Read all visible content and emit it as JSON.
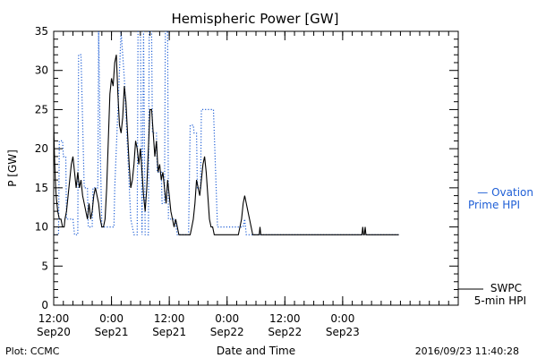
{
  "chart_data": {
    "type": "line",
    "title": "Hemispheric Power [GW]",
    "ylabel": "P [GW]",
    "xlabel": "Date and Time",
    "ylim": [
      0,
      35
    ],
    "xlim": [
      "2016-09-20T12:00",
      "2016-09-24T00:00"
    ],
    "yticks": [
      "0",
      "5",
      "10",
      "15",
      "20",
      "25",
      "30",
      "35"
    ],
    "xticks": [
      {
        "at": "2016-09-20T12:00",
        "line1": "12:00",
        "line2": "Sep20"
      },
      {
        "at": "2016-09-21T00:00",
        "line1": "0:00",
        "line2": "Sep21"
      },
      {
        "at": "2016-09-21T12:00",
        "line1": "12:00",
        "line2": "Sep21"
      },
      {
        "at": "2016-09-22T00:00",
        "line1": "0:00",
        "line2": "Sep22"
      },
      {
        "at": "2016-09-22T12:00",
        "line1": "12:00",
        "line2": "Sep22"
      },
      {
        "at": "2016-09-23T00:00",
        "line1": "0:00",
        "line2": "Sep23"
      }
    ],
    "grid": false,
    "legend": [
      {
        "text1": "— Ovation",
        "text2": "Prime HPI",
        "color": "#1f5fd6",
        "style": "dotted"
      },
      {
        "text1": "SWPC",
        "text2": "5-min HPI",
        "color": "#000000",
        "style": "solid"
      }
    ],
    "series": [
      {
        "name": "Ovation Prime HPI",
        "color": "#1f5fd6",
        "style": "dotted",
        "points": [
          [
            "2016-09-20T12:00",
            9
          ],
          [
            "2016-09-20T12:40",
            9
          ],
          [
            "2016-09-20T13:00",
            9
          ],
          [
            "2016-09-20T13:10",
            21
          ],
          [
            "2016-09-20T13:50",
            21
          ],
          [
            "2016-09-20T14:00",
            19
          ],
          [
            "2016-09-20T14:30",
            19
          ],
          [
            "2016-09-20T14:40",
            11
          ],
          [
            "2016-09-20T16:00",
            11
          ],
          [
            "2016-09-20T16:20",
            9
          ],
          [
            "2016-09-20T17:00",
            9
          ],
          [
            "2016-09-20T17:10",
            32
          ],
          [
            "2016-09-20T17:40",
            32
          ],
          [
            "2016-09-20T18:20",
            15
          ],
          [
            "2016-09-20T19:00",
            15
          ],
          [
            "2016-09-20T19:10",
            10
          ],
          [
            "2016-09-20T20:00",
            10
          ],
          [
            "2016-09-20T20:10",
            15
          ],
          [
            "2016-09-20T21:10",
            15
          ],
          [
            "2016-09-20T21:20",
            35
          ],
          [
            "2016-09-20T21:40",
            20
          ],
          [
            "2016-09-20T22:00",
            10
          ],
          [
            "2016-09-21T00:30",
            10
          ],
          [
            "2016-09-21T00:40",
            15
          ],
          [
            "2016-09-21T02:00",
            35
          ],
          [
            "2016-09-21T02:40",
            29
          ],
          [
            "2016-09-21T04:00",
            11
          ],
          [
            "2016-09-21T04:40",
            9
          ],
          [
            "2016-09-21T05:20",
            9
          ],
          [
            "2016-09-21T05:30",
            35
          ],
          [
            "2016-09-21T06:00",
            35
          ],
          [
            "2016-09-21T06:20",
            9
          ],
          [
            "2016-09-21T06:40",
            35
          ],
          [
            "2016-09-21T07:00",
            9
          ],
          [
            "2016-09-21T07:40",
            9
          ],
          [
            "2016-09-21T07:50",
            35
          ],
          [
            "2016-09-21T08:20",
            35
          ],
          [
            "2016-09-21T08:30",
            22
          ],
          [
            "2016-09-21T09:20",
            22
          ],
          [
            "2016-09-21T09:30",
            17
          ],
          [
            "2016-09-21T10:20",
            17
          ],
          [
            "2016-09-21T10:30",
            13
          ],
          [
            "2016-09-21T11:00",
            13
          ],
          [
            "2016-09-21T11:10",
            35
          ],
          [
            "2016-09-21T11:40",
            35
          ],
          [
            "2016-09-21T11:50",
            11
          ],
          [
            "2016-09-21T13:10",
            11
          ],
          [
            "2016-09-21T13:40",
            9
          ],
          [
            "2016-09-21T16:00",
            9
          ],
          [
            "2016-09-21T16:20",
            23
          ],
          [
            "2016-09-21T17:00",
            23
          ],
          [
            "2016-09-21T17:10",
            22
          ],
          [
            "2016-09-21T17:40",
            22
          ],
          [
            "2016-09-21T17:50",
            15
          ],
          [
            "2016-09-21T18:30",
            15
          ],
          [
            "2016-09-21T18:40",
            25
          ],
          [
            "2016-09-21T21:10",
            25
          ],
          [
            "2016-09-21T22:00",
            10
          ],
          [
            "2016-09-22T03:20",
            10
          ],
          [
            "2016-09-22T03:40",
            11
          ],
          [
            "2016-09-22T04:00",
            9
          ],
          [
            "2016-09-23T11:40",
            9
          ]
        ]
      },
      {
        "name": "SWPC 5-min HPI",
        "color": "#000000",
        "style": "solid",
        "points": [
          [
            "2016-09-20T12:00",
            23
          ],
          [
            "2016-09-20T12:10",
            19
          ],
          [
            "2016-09-20T12:20",
            16
          ],
          [
            "2016-09-20T12:30",
            14
          ],
          [
            "2016-09-20T12:40",
            13
          ],
          [
            "2016-09-20T12:50",
            12
          ],
          [
            "2016-09-20T13:10",
            11
          ],
          [
            "2016-09-20T13:30",
            11
          ],
          [
            "2016-09-20T13:50",
            10
          ],
          [
            "2016-09-20T14:10",
            10
          ],
          [
            "2016-09-20T14:20",
            11
          ],
          [
            "2016-09-20T14:40",
            12
          ],
          [
            "2016-09-20T15:00",
            14
          ],
          [
            "2016-09-20T15:20",
            16
          ],
          [
            "2016-09-20T15:40",
            18
          ],
          [
            "2016-09-20T16:00",
            19
          ],
          [
            "2016-09-20T16:20",
            17
          ],
          [
            "2016-09-20T16:40",
            15
          ],
          [
            "2016-09-20T17:00",
            17
          ],
          [
            "2016-09-20T17:20",
            15
          ],
          [
            "2016-09-20T17:40",
            16
          ],
          [
            "2016-09-20T18:00",
            14
          ],
          [
            "2016-09-20T18:20",
            13
          ],
          [
            "2016-09-20T18:40",
            12
          ],
          [
            "2016-09-20T19:00",
            11
          ],
          [
            "2016-09-20T19:20",
            13
          ],
          [
            "2016-09-20T19:40",
            11
          ],
          [
            "2016-09-20T20:00",
            12
          ],
          [
            "2016-09-20T20:20",
            14
          ],
          [
            "2016-09-20T20:40",
            15
          ],
          [
            "2016-09-20T21:00",
            14
          ],
          [
            "2016-09-20T21:20",
            13
          ],
          [
            "2016-09-20T21:40",
            11
          ],
          [
            "2016-09-20T22:00",
            10
          ],
          [
            "2016-09-20T22:20",
            10
          ],
          [
            "2016-09-20T22:40",
            11
          ],
          [
            "2016-09-20T23:00",
            15
          ],
          [
            "2016-09-20T23:20",
            21
          ],
          [
            "2016-09-20T23:40",
            27
          ],
          [
            "2016-09-21T00:00",
            29
          ],
          [
            "2016-09-21T00:20",
            28
          ],
          [
            "2016-09-21T00:40",
            31
          ],
          [
            "2016-09-21T01:00",
            32
          ],
          [
            "2016-09-21T01:20",
            27
          ],
          [
            "2016-09-21T01:40",
            23
          ],
          [
            "2016-09-21T02:00",
            22
          ],
          [
            "2016-09-21T02:20",
            24
          ],
          [
            "2016-09-21T02:40",
            28
          ],
          [
            "2016-09-21T03:00",
            26
          ],
          [
            "2016-09-21T03:20",
            22
          ],
          [
            "2016-09-21T03:40",
            18
          ],
          [
            "2016-09-21T04:00",
            15
          ],
          [
            "2016-09-21T04:20",
            16
          ],
          [
            "2016-09-21T04:40",
            18
          ],
          [
            "2016-09-21T05:00",
            21
          ],
          [
            "2016-09-21T05:20",
            20
          ],
          [
            "2016-09-21T05:40",
            18
          ],
          [
            "2016-09-21T06:00",
            20
          ],
          [
            "2016-09-21T06:20",
            17
          ],
          [
            "2016-09-21T06:40",
            14
          ],
          [
            "2016-09-21T07:00",
            12
          ],
          [
            "2016-09-21T07:20",
            15
          ],
          [
            "2016-09-21T07:40",
            20
          ],
          [
            "2016-09-21T08:00",
            25
          ],
          [
            "2016-09-21T08:20",
            25
          ],
          [
            "2016-09-21T08:40",
            22
          ],
          [
            "2016-09-21T09:00",
            19
          ],
          [
            "2016-09-21T09:20",
            21
          ],
          [
            "2016-09-21T09:40",
            17
          ],
          [
            "2016-09-21T10:00",
            18
          ],
          [
            "2016-09-21T10:20",
            16
          ],
          [
            "2016-09-21T10:40",
            17
          ],
          [
            "2016-09-21T11:00",
            15
          ],
          [
            "2016-09-21T11:20",
            13
          ],
          [
            "2016-09-21T11:40",
            16
          ],
          [
            "2016-09-21T12:00",
            14
          ],
          [
            "2016-09-21T12:20",
            12
          ],
          [
            "2016-09-21T12:40",
            11
          ],
          [
            "2016-09-21T13:00",
            10
          ],
          [
            "2016-09-21T13:20",
            11
          ],
          [
            "2016-09-21T13:40",
            10
          ],
          [
            "2016-09-21T14:00",
            9
          ],
          [
            "2016-09-21T16:20",
            9
          ],
          [
            "2016-09-21T16:40",
            10
          ],
          [
            "2016-09-21T17:00",
            11
          ],
          [
            "2016-09-21T17:20",
            13
          ],
          [
            "2016-09-21T17:40",
            16
          ],
          [
            "2016-09-21T18:00",
            15
          ],
          [
            "2016-09-21T18:20",
            14
          ],
          [
            "2016-09-21T18:40",
            16
          ],
          [
            "2016-09-21T19:00",
            18
          ],
          [
            "2016-09-21T19:20",
            19
          ],
          [
            "2016-09-21T19:40",
            17
          ],
          [
            "2016-09-21T20:00",
            14
          ],
          [
            "2016-09-21T20:20",
            11
          ],
          [
            "2016-09-21T20:40",
            10
          ],
          [
            "2016-09-21T21:00",
            10
          ],
          [
            "2016-09-21T21:20",
            9
          ],
          [
            "2016-09-22T02:20",
            9
          ],
          [
            "2016-09-22T02:40",
            10
          ],
          [
            "2016-09-22T03:00",
            11
          ],
          [
            "2016-09-22T03:20",
            13
          ],
          [
            "2016-09-22T03:40",
            14
          ],
          [
            "2016-09-22T04:00",
            13
          ],
          [
            "2016-09-22T04:20",
            12
          ],
          [
            "2016-09-22T04:40",
            11
          ],
          [
            "2016-09-22T05:00",
            10
          ],
          [
            "2016-09-22T05:20",
            9
          ],
          [
            "2016-09-22T06:40",
            9
          ],
          [
            "2016-09-22T06:50",
            10
          ],
          [
            "2016-09-22T07:00",
            9
          ],
          [
            "2016-09-23T04:00",
            9
          ],
          [
            "2016-09-23T04:10",
            10
          ],
          [
            "2016-09-23T04:20",
            9
          ],
          [
            "2016-09-23T04:30",
            9
          ],
          [
            "2016-09-23T04:40",
            10
          ],
          [
            "2016-09-23T04:50",
            9
          ],
          [
            "2016-09-23T11:40",
            9
          ]
        ]
      }
    ]
  },
  "footer": {
    "left": "Plot: CCMC",
    "right": "2016/09/23 11:40:28"
  }
}
